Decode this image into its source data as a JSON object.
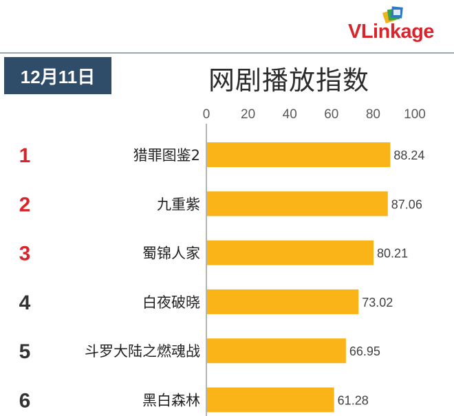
{
  "header": {
    "date_badge": "12月11日",
    "logo_text": "VLinkage"
  },
  "colors": {
    "bar": "#fbb417",
    "rank_top": "#d8242b",
    "rank_other": "#333333",
    "badge_bg": "#2f4d68",
    "logo_red": "#d8242b"
  },
  "chart_data": {
    "type": "bar",
    "orientation": "horizontal",
    "title": "网剧播放指数",
    "xlim": [
      0,
      100
    ],
    "x_ticks": [
      0,
      20,
      40,
      60,
      80,
      100
    ],
    "ranks": [
      "1",
      "2",
      "3",
      "4",
      "5",
      "6"
    ],
    "categories": [
      "猎罪图鉴2",
      "九重紫",
      "蜀锦人家",
      "白夜破晓",
      "斗罗大陆之燃魂战",
      "黑白森林"
    ],
    "values": [
      88.24,
      87.06,
      80.21,
      73.02,
      66.95,
      61.28
    ],
    "value_labels": [
      "88.24",
      "87.06",
      "80.21",
      "73.02",
      "66.95",
      "61.28"
    ],
    "grid": false,
    "legend": "none"
  }
}
